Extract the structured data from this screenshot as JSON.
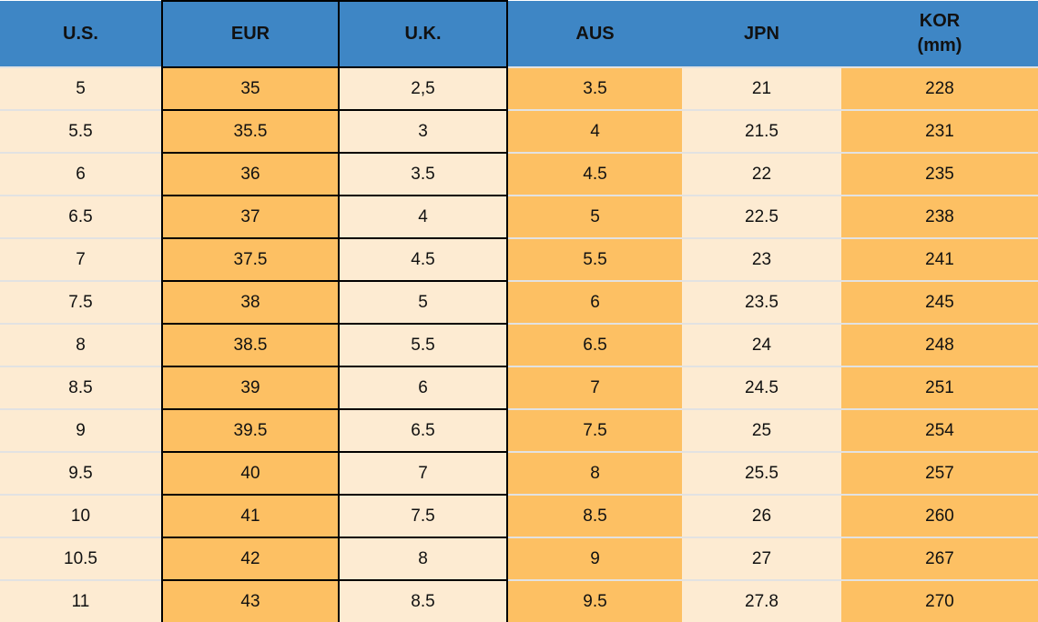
{
  "colors": {
    "header_bg": "#3e86c5",
    "orange_cell": "#fdc063",
    "cream_cell": "#fdebd2",
    "grid_border": "#000000",
    "row_separator": "#e2e2e2",
    "text": "#111111"
  },
  "chart_data": {
    "type": "table",
    "columns": [
      {
        "key": "us",
        "label": "U.S."
      },
      {
        "key": "eur",
        "label": "EUR"
      },
      {
        "key": "uk",
        "label": "U.K."
      },
      {
        "key": "aus",
        "label": "AUS"
      },
      {
        "key": "jpn",
        "label": "JPN"
      },
      {
        "key": "kor",
        "label": "KOR",
        "sub_label": "(mm)"
      }
    ],
    "rows": [
      [
        "5",
        "35",
        "2,5",
        "3.5",
        "21",
        "228"
      ],
      [
        "5.5",
        "35.5",
        "3",
        "4",
        "21.5",
        "231"
      ],
      [
        "6",
        "36",
        "3.5",
        "4.5",
        "22",
        "235"
      ],
      [
        "6.5",
        "37",
        "4",
        "5",
        "22.5",
        "238"
      ],
      [
        "7",
        "37.5",
        "4.5",
        "5.5",
        "23",
        "241"
      ],
      [
        "7.5",
        "38",
        "5",
        "6",
        "23.5",
        "245"
      ],
      [
        "8",
        "38.5",
        "5.5",
        "6.5",
        "24",
        "248"
      ],
      [
        "8.5",
        "39",
        "6",
        "7",
        "24.5",
        "251"
      ],
      [
        "9",
        "39.5",
        "6.5",
        "7.5",
        "25",
        "254"
      ],
      [
        "9.5",
        "40",
        "7",
        "8",
        "25.5",
        "257"
      ],
      [
        "10",
        "41",
        "7.5",
        "8.5",
        "26",
        "260"
      ],
      [
        "10.5",
        "42",
        "8",
        "9",
        "27",
        "267"
      ],
      [
        "11",
        "43",
        "8.5",
        "9.5",
        "27.8",
        "270"
      ]
    ]
  }
}
